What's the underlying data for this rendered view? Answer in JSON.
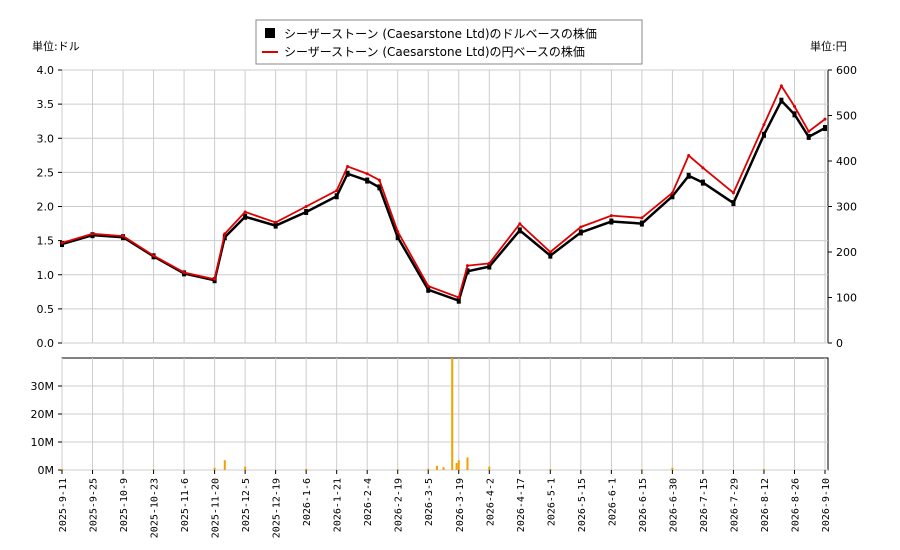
{
  "legend": {
    "usd_label": "シーザーストーン (Caesarstone Ltd)のドルベースの株価",
    "jpy_label": "シーザーストーン (Caesarstone Ltd)の円ベースの株価"
  },
  "units": {
    "left": "単位:ドル",
    "right": "単位:円"
  },
  "colors": {
    "usd": "#000000",
    "jpy": "#dd0000",
    "volume": "#f0a000",
    "grid": "#cccccc"
  },
  "chart_data": {
    "type": "line",
    "date_ticks": [
      "2025-9-11",
      "2025-9-25",
      "2025-10-9",
      "2025-10-23",
      "2025-11-6",
      "2025-11-20",
      "2025-12-5",
      "2025-12-19",
      "2026-1-6",
      "2026-1-21",
      "2026-2-4",
      "2026-2-19",
      "2026-3-5",
      "2026-3-19",
      "2026-4-2",
      "2026-4-17",
      "2026-5-1",
      "2026-5-15",
      "2026-6-1",
      "2026-6-15",
      "2026-6-30",
      "2026-7-15",
      "2026-7-29",
      "2026-8-12",
      "2026-8-26",
      "2026-9-10"
    ],
    "price_axis": {
      "left_ylim": [
        0,
        4.0
      ],
      "left_ticks": [
        "0.0",
        "0.5",
        "1.0",
        "1.5",
        "2.0",
        "2.5",
        "3.0",
        "3.5",
        "4.0"
      ],
      "right_ylim": [
        0,
        600
      ],
      "right_ticks": [
        "0",
        "100",
        "200",
        "300",
        "400",
        "500",
        "600"
      ]
    },
    "volume_axis": {
      "ylim": [
        0,
        40
      ],
      "ticks": [
        "0M",
        "10M",
        "20M",
        "30M"
      ]
    },
    "series": [
      {
        "name": "シーザーストーン (Caesarstone Ltd)のドルベースの株価",
        "x": [
          "2025-9-11",
          "2025-9-25",
          "2025-10-9",
          "2025-10-23",
          "2025-11-6",
          "2025-11-20",
          "2025-11-25",
          "2025-12-5",
          "2025-12-19",
          "2026-1-6",
          "2026-1-21",
          "2026-1-26",
          "2026-2-4",
          "2026-2-10",
          "2026-2-19",
          "2026-3-5",
          "2026-3-19",
          "2026-3-23",
          "2026-4-2",
          "2026-4-17",
          "2026-5-1",
          "2026-5-15",
          "2026-6-1",
          "2026-6-15",
          "2026-6-30",
          "2026-7-8",
          "2026-7-15",
          "2026-7-29",
          "2026-8-12",
          "2026-8-20",
          "2026-8-26",
          "2026-9-2",
          "2026-9-10"
        ],
        "y": [
          1.45,
          1.58,
          1.55,
          1.27,
          1.02,
          0.92,
          1.55,
          1.85,
          1.72,
          1.92,
          2.15,
          2.48,
          2.38,
          2.28,
          1.55,
          0.78,
          0.62,
          1.05,
          1.12,
          1.65,
          1.28,
          1.62,
          1.78,
          1.75,
          2.15,
          2.45,
          2.35,
          2.05,
          3.05,
          3.55,
          3.35,
          3.02,
          3.15
        ]
      },
      {
        "name": "シーザーストーン (Caesarstone Ltd)の円ベースの株価",
        "x": [
          "2025-9-11",
          "2025-9-25",
          "2025-10-9",
          "2025-10-23",
          "2025-11-6",
          "2025-11-20",
          "2025-11-25",
          "2025-12-5",
          "2025-12-19",
          "2026-1-6",
          "2026-1-21",
          "2026-1-26",
          "2026-2-4",
          "2026-2-10",
          "2026-2-19",
          "2026-3-5",
          "2026-3-19",
          "2026-3-23",
          "2026-4-2",
          "2026-4-17",
          "2026-5-1",
          "2026-5-15",
          "2026-6-1",
          "2026-6-15",
          "2026-6-30",
          "2026-7-8",
          "2026-7-15",
          "2026-7-29",
          "2026-8-12",
          "2026-8-20",
          "2026-8-26",
          "2026-9-2",
          "2026-9-10"
        ],
        "y": [
          220,
          240,
          235,
          192,
          155,
          140,
          240,
          288,
          265,
          300,
          335,
          388,
          372,
          358,
          245,
          125,
          100,
          170,
          175,
          262,
          200,
          255,
          280,
          275,
          330,
          412,
          385,
          330,
          480,
          565,
          520,
          465,
          492
        ]
      }
    ],
    "volume": {
      "x": [
        "2025-9-11",
        "2025-10-23",
        "2025-11-20",
        "2025-11-25",
        "2025-12-5",
        "2026-1-6",
        "2026-2-19",
        "2026-3-5",
        "2026-3-9",
        "2026-3-12",
        "2026-3-16",
        "2026-3-18",
        "2026-3-19",
        "2026-3-23",
        "2026-4-2",
        "2026-5-1",
        "2026-6-15",
        "2026-6-30",
        "2026-8-12"
      ],
      "values": [
        0.4,
        0.3,
        0.8,
        3.5,
        1.2,
        0.4,
        0.3,
        0.5,
        1.5,
        1.0,
        40.0,
        2.5,
        3.5,
        4.5,
        1.2,
        0.4,
        0.3,
        0.8,
        0.4
      ]
    }
  }
}
